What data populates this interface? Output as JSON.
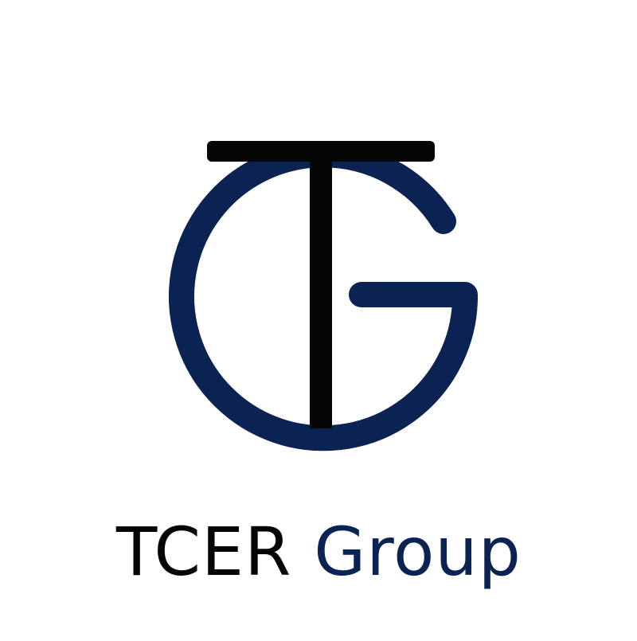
{
  "logo": {
    "emblem_icon": "tg-monogram-icon",
    "wordmark_part_1": "TCER",
    "wordmark_part_2": "Group"
  },
  "colors": {
    "background": "#ffffff",
    "letter_t": "#050505",
    "letter_g": "#0b2353",
    "wordmark_part_1": "#050505",
    "wordmark_part_2": "#0b2353"
  }
}
